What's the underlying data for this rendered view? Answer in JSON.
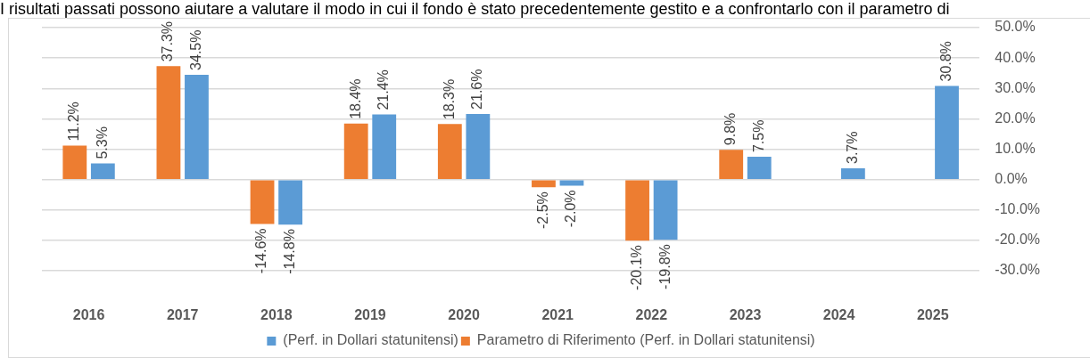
{
  "chart_data": {
    "type": "bar",
    "title": "I risultati passati possono aiutare a valutare il modo in cui il fondo è stato precedentemente gestito e a confrontarlo con il parametro di",
    "categories": [
      "2016",
      "2017",
      "2018",
      "2019",
      "2020",
      "2021",
      "2022",
      "2023",
      "2024",
      "2025"
    ],
    "series": [
      {
        "name": "Parametro di Riferimento (Perf. in Dollari statunitensi)",
        "color": "#ed7d31",
        "values": [
          11.2,
          37.3,
          -14.6,
          18.4,
          18.3,
          -2.5,
          -20.1,
          9.8,
          null,
          null
        ],
        "value_labels": [
          "11.2%",
          "37.3%",
          "-14.6%",
          "18.4%",
          "18.3%",
          "-2.5%",
          "-20.1%",
          "9.8%",
          null,
          null
        ]
      },
      {
        "name": "(Perf. in Dollari statunitensi)",
        "color": "#5b9bd5",
        "values": [
          5.3,
          34.5,
          -14.8,
          21.4,
          21.6,
          -2.0,
          -19.8,
          7.5,
          3.7,
          30.8
        ],
        "value_labels": [
          "5.3%",
          "34.5%",
          "-14.8%",
          "21.4%",
          "21.6%",
          "-2.0%",
          "-19.8%",
          "7.5%",
          "3.7%",
          "30.8%"
        ]
      }
    ],
    "ylim": [
      -30,
      50
    ],
    "yticks": [
      {
        "value": -30,
        "label": "-30.0%"
      },
      {
        "value": -20,
        "label": "-20.0%"
      },
      {
        "value": -10,
        "label": "-10.0%"
      },
      {
        "value": 0,
        "label": "0.0%"
      },
      {
        "value": 10,
        "label": "10.0%"
      },
      {
        "value": 20,
        "label": "20.0%"
      },
      {
        "value": 30,
        "label": "30.0%"
      },
      {
        "value": 40,
        "label": "40.0%"
      },
      {
        "value": 50,
        "label": "50.0%"
      }
    ],
    "grid": "y",
    "legend": "bottom"
  }
}
